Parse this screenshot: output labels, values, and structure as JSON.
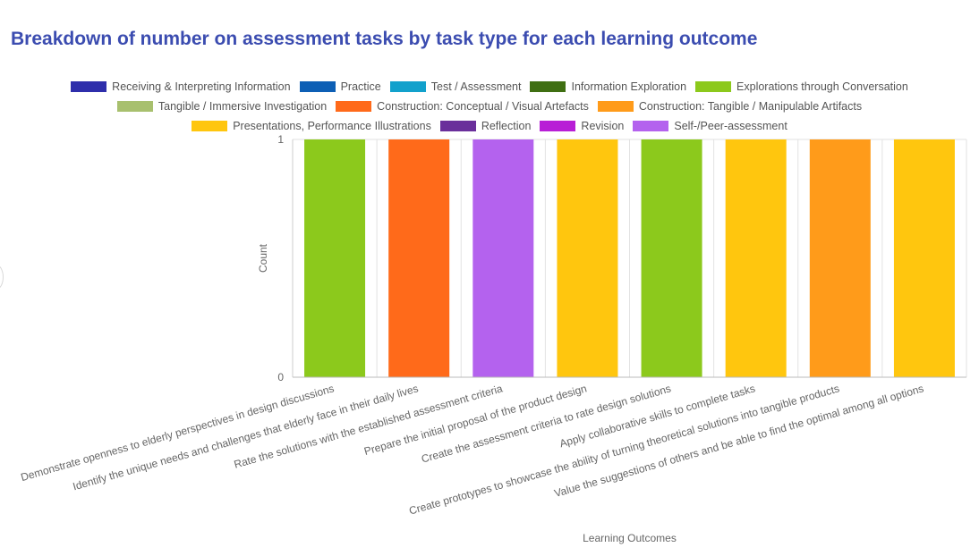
{
  "chart_data": {
    "type": "bar",
    "title": "Breakdown of number on assessment tasks by task type for each learning outcome",
    "xlabel": "Learning Outcomes",
    "ylabel": "Count",
    "ylim": [
      0,
      1
    ],
    "yticks": [
      "0",
      "1"
    ],
    "grid": true,
    "legend_placement": "top",
    "legend": [
      [
        "Receiving & Interpreting Information",
        "Practice",
        "Test / Assessment",
        "Information Exploration",
        "Explorations through Conversation"
      ],
      [
        "Tangible / Immersive Investigation",
        "Construction: Conceptual / Visual Artefacts",
        "Construction: Tangible / Manipulable Artifacts"
      ],
      [
        "Presentations, Performance Illustrations",
        "Reflection",
        "Revision",
        "Self-/Peer-assessment"
      ]
    ],
    "series_colors": {
      "Receiving & Interpreting Information": "#2e2eab",
      "Practice": "#0d5fb5",
      "Test / Assessment": "#12a1cc",
      "Information Exploration": "#3f6f12",
      "Explorations through Conversation": "#8cc91c",
      "Tangible / Immersive Investigation": "#a8c06e",
      "Construction: Conceptual / Visual Artefacts": "#ff6a1a",
      "Construction: Tangible / Manipulable Artifacts": "#ff9b1a",
      "Presentations, Performance Illustrations": "#ffc60e",
      "Reflection": "#6a2f9b",
      "Revision": "#b81fd6",
      "Self-/Peer-assessment": "#b462ee"
    },
    "categories": [
      "Demonstrate openness to elderly perspectives in design discussions",
      "Identify the unique needs and challenges that elderly face in their daily lives",
      "Rate the solutions with the established assessment criteria",
      "Prepare the initial proposal of the product design",
      "Create the assessment criteria to rate design solutions",
      "Apply collaborative skills to complete tasks",
      "Create prototypes to showcase the ability of turning theoretical solutions into tangible products",
      "Value the suggestions of others and be able to find the optimal among all options"
    ],
    "bars": [
      {
        "series": "Explorations through Conversation",
        "value": 1
      },
      {
        "series": "Construction: Conceptual / Visual Artefacts",
        "value": 1
      },
      {
        "series": "Self-/Peer-assessment",
        "value": 1
      },
      {
        "series": "Presentations, Performance Illustrations",
        "value": 1
      },
      {
        "series": "Explorations through Conversation",
        "value": 1
      },
      {
        "series": "Presentations, Performance Illustrations",
        "value": 1
      },
      {
        "series": "Construction: Tangible / Manipulable Artifacts",
        "value": 1
      },
      {
        "series": "Presentations, Performance Illustrations",
        "value": 1
      }
    ]
  }
}
